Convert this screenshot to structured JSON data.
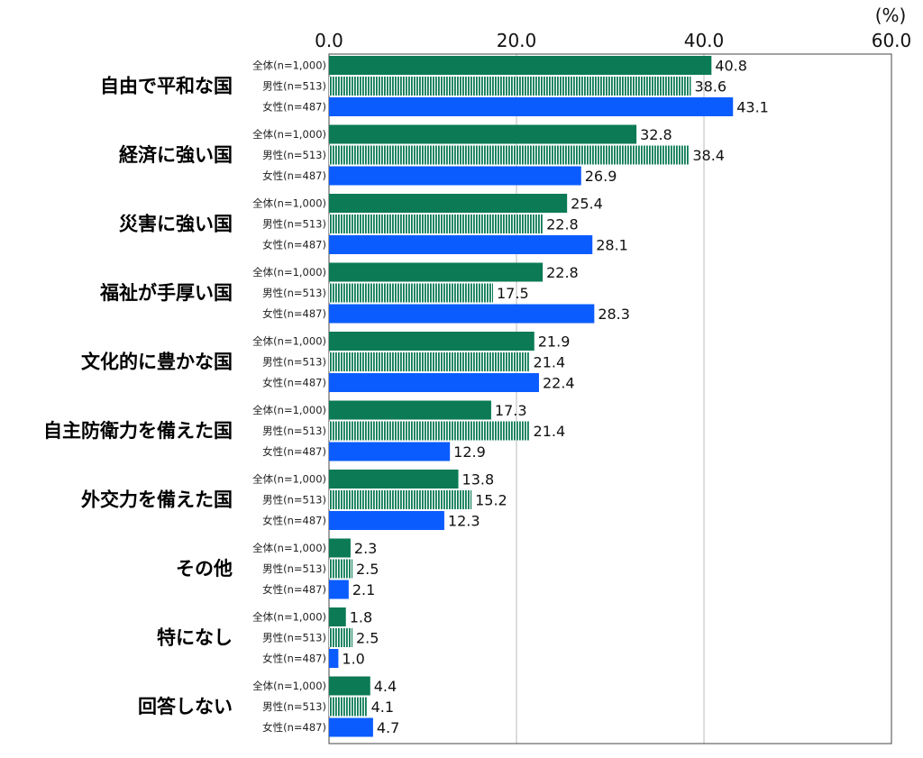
{
  "chart_data": {
    "type": "bar",
    "orientation": "horizontal",
    "unit_label": "(%)",
    "xlim": [
      0,
      60
    ],
    "ticks": [
      "0.0",
      "20.0",
      "40.0",
      "60.0"
    ],
    "grid": true,
    "categories": [
      "自由で平和な国",
      "経済に強い国",
      "災害に強い国",
      "福祉が手厚い国",
      "文化的に豊かな国",
      "自主防衛力を備えた国",
      "外交力を備えた国",
      "その他",
      "特になし",
      "回答しない"
    ],
    "series": [
      {
        "name": "全体(n=1,000)",
        "color": "#0b7a55",
        "pattern": "solid",
        "values": [
          40.8,
          32.8,
          25.4,
          22.8,
          21.9,
          17.3,
          13.8,
          2.3,
          1.8,
          4.4
        ]
      },
      {
        "name": "男性(n=513)",
        "color": "#0b7a55",
        "pattern": "vertical-stripes",
        "values": [
          38.6,
          38.4,
          22.8,
          17.5,
          21.4,
          21.4,
          15.2,
          2.5,
          2.5,
          4.1
        ]
      },
      {
        "name": "女性(n=487)",
        "color": "#0a5cff",
        "pattern": "solid",
        "values": [
          43.1,
          26.9,
          28.1,
          28.3,
          22.4,
          12.9,
          12.3,
          2.1,
          1.0,
          4.7
        ]
      }
    ]
  }
}
